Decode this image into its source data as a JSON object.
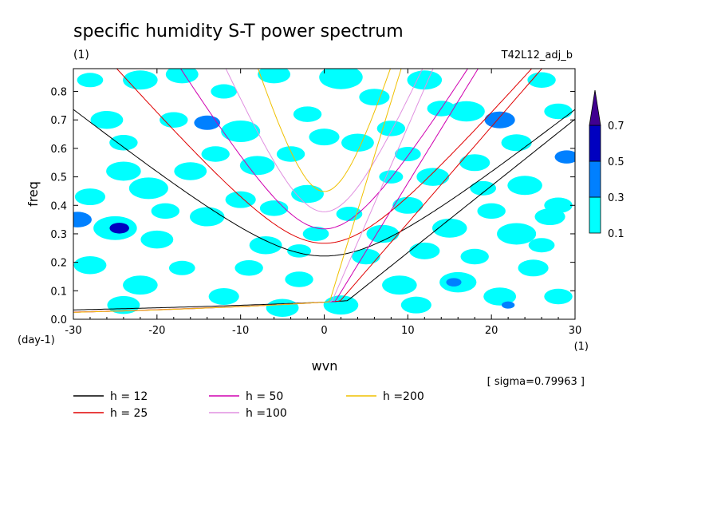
{
  "chart_data": {
    "type": "heatmap",
    "title": "specific humidity S-T power spectrum",
    "subtitle": "(1)",
    "run_label": "T42L12_adj_b",
    "xlabel": "wvn",
    "ylabel": "freq",
    "x_unit": "(1)",
    "y_unit": "(day-1)",
    "sigma_label": "[ sigma=0.79963 ]",
    "xlim": [
      -30,
      30
    ],
    "ylim": [
      0,
      0.88
    ],
    "x_ticks": [
      -30,
      -20,
      -10,
      0,
      10,
      20,
      30
    ],
    "x_tick_labels": [
      "-30",
      "-20",
      "-10",
      "0",
      "10",
      "20",
      "30"
    ],
    "y_ticks": [
      0.0,
      0.1,
      0.2,
      0.3,
      0.4,
      0.5,
      0.6,
      0.7,
      0.8
    ],
    "y_tick_labels": [
      "0.0",
      "0.1",
      "0.2",
      "0.3",
      "0.4",
      "0.5",
      "0.6",
      "0.7",
      "0.8"
    ],
    "colorbar": {
      "levels": [
        0.1,
        0.3,
        0.5,
        0.7
      ],
      "labels": [
        "0.1",
        "0.3",
        "0.5",
        "0.7"
      ],
      "colors": [
        "#00ffff",
        "#0080ff",
        "#0000c0",
        "#400090"
      ]
    },
    "dispersion_curves": [
      {
        "name": "h = 12",
        "h": 12,
        "color": "#000000"
      },
      {
        "name": "h = 25",
        "h": 25,
        "color": "#e00000"
      },
      {
        "name": "h = 50",
        "h": 50,
        "color": "#d000b0"
      },
      {
        "name": "h =100",
        "h": 100,
        "color": "#e090e0"
      },
      {
        "name": "h =200",
        "h": 200,
        "color": "#f0c000"
      }
    ],
    "power_blobs": [
      {
        "x": -28,
        "y": 0.84,
        "r": 1.2,
        "level": 1
      },
      {
        "x": -26,
        "y": 0.7,
        "r": 1.5,
        "level": 1
      },
      {
        "x": -24,
        "y": 0.62,
        "r": 1.3,
        "level": 1
      },
      {
        "x": -22,
        "y": 0.84,
        "r": 1.6,
        "level": 1
      },
      {
        "x": -17,
        "y": 0.86,
        "r": 1.5,
        "level": 1
      },
      {
        "x": -14,
        "y": 0.69,
        "r": 1.2,
        "level": 2
      },
      {
        "x": -10,
        "y": 0.66,
        "r": 1.8,
        "level": 1
      },
      {
        "x": -6,
        "y": 0.86,
        "r": 1.5,
        "level": 1
      },
      {
        "x": -2,
        "y": 0.72,
        "r": 1.3,
        "level": 1
      },
      {
        "x": 2,
        "y": 0.85,
        "r": 2.0,
        "level": 1
      },
      {
        "x": 6,
        "y": 0.78,
        "r": 1.4,
        "level": 1
      },
      {
        "x": 12,
        "y": 0.84,
        "r": 1.6,
        "level": 1
      },
      {
        "x": 17,
        "y": 0.73,
        "r": 1.7,
        "level": 1
      },
      {
        "x": 21,
        "y": 0.7,
        "r": 1.4,
        "level": 2
      },
      {
        "x": 26,
        "y": 0.84,
        "r": 1.3,
        "level": 1
      },
      {
        "x": 29,
        "y": 0.57,
        "r": 1.1,
        "level": 2
      },
      {
        "x": -28,
        "y": 0.43,
        "r": 1.4,
        "level": 1
      },
      {
        "x": -24,
        "y": 0.52,
        "r": 1.6,
        "level": 1
      },
      {
        "x": -21,
        "y": 0.46,
        "r": 1.8,
        "level": 1
      },
      {
        "x": -16,
        "y": 0.52,
        "r": 1.5,
        "level": 1
      },
      {
        "x": -13,
        "y": 0.58,
        "r": 1.3,
        "level": 1
      },
      {
        "x": -8,
        "y": 0.54,
        "r": 1.6,
        "level": 1
      },
      {
        "x": -4,
        "y": 0.58,
        "r": 1.3,
        "level": 1
      },
      {
        "x": 4,
        "y": 0.62,
        "r": 1.5,
        "level": 1
      },
      {
        "x": 8,
        "y": 0.67,
        "r": 1.3,
        "level": 1
      },
      {
        "x": 13,
        "y": 0.5,
        "r": 1.5,
        "level": 1
      },
      {
        "x": 18,
        "y": 0.55,
        "r": 1.4,
        "level": 1
      },
      {
        "x": 24,
        "y": 0.47,
        "r": 1.6,
        "level": 1
      },
      {
        "x": 28,
        "y": 0.4,
        "r": 1.3,
        "level": 1
      },
      {
        "x": -29.5,
        "y": 0.35,
        "r": 1.3,
        "level": 2
      },
      {
        "x": -25,
        "y": 0.32,
        "r": 2.0,
        "level": 1
      },
      {
        "x": -24.5,
        "y": 0.32,
        "r": 0.9,
        "level": 3
      },
      {
        "x": -20,
        "y": 0.28,
        "r": 1.5,
        "level": 1
      },
      {
        "x": -14,
        "y": 0.36,
        "r": 1.6,
        "level": 1
      },
      {
        "x": -10,
        "y": 0.42,
        "r": 1.4,
        "level": 1
      },
      {
        "x": -6,
        "y": 0.39,
        "r": 1.3,
        "level": 1
      },
      {
        "x": -2,
        "y": 0.44,
        "r": 1.5,
        "level": 1
      },
      {
        "x": 10,
        "y": 0.4,
        "r": 1.4,
        "level": 1
      },
      {
        "x": 15,
        "y": 0.32,
        "r": 1.6,
        "level": 1
      },
      {
        "x": 20,
        "y": 0.38,
        "r": 1.3,
        "level": 1
      },
      {
        "x": 23,
        "y": 0.3,
        "r": 1.8,
        "level": 1
      },
      {
        "x": 27,
        "y": 0.36,
        "r": 1.4,
        "level": 1
      },
      {
        "x": -28,
        "y": 0.19,
        "r": 1.5,
        "level": 1
      },
      {
        "x": -22,
        "y": 0.12,
        "r": 1.6,
        "level": 1
      },
      {
        "x": -17,
        "y": 0.18,
        "r": 1.2,
        "level": 1
      },
      {
        "x": -12,
        "y": 0.08,
        "r": 1.4,
        "level": 1
      },
      {
        "x": -7,
        "y": 0.26,
        "r": 1.5,
        "level": 1
      },
      {
        "x": -3,
        "y": 0.14,
        "r": 1.3,
        "level": 1
      },
      {
        "x": 2,
        "y": 0.05,
        "r": 1.6,
        "level": 1
      },
      {
        "x": 5,
        "y": 0.22,
        "r": 1.3,
        "level": 1
      },
      {
        "x": 9,
        "y": 0.12,
        "r": 1.6,
        "level": 1
      },
      {
        "x": 12,
        "y": 0.24,
        "r": 1.4,
        "level": 1
      },
      {
        "x": 16,
        "y": 0.13,
        "r": 1.7,
        "level": 1
      },
      {
        "x": 15.5,
        "y": 0.13,
        "r": 0.7,
        "level": 2
      },
      {
        "x": 21,
        "y": 0.08,
        "r": 1.5,
        "level": 1
      },
      {
        "x": 22,
        "y": 0.05,
        "r": 0.6,
        "level": 2
      },
      {
        "x": 25,
        "y": 0.18,
        "r": 1.4,
        "level": 1
      },
      {
        "x": 28,
        "y": 0.08,
        "r": 1.3,
        "level": 1
      },
      {
        "x": -24,
        "y": 0.05,
        "r": 1.5,
        "level": 1
      },
      {
        "x": -9,
        "y": 0.18,
        "r": 1.3,
        "level": 1
      },
      {
        "x": -1,
        "y": 0.3,
        "r": 1.2,
        "level": 1
      },
      {
        "x": 7,
        "y": 0.3,
        "r": 1.5,
        "level": 1
      },
      {
        "x": 18,
        "y": 0.22,
        "r": 1.3,
        "level": 1
      },
      {
        "x": -5,
        "y": 0.04,
        "r": 1.5,
        "level": 1
      },
      {
        "x": 11,
        "y": 0.05,
        "r": 1.4,
        "level": 1
      },
      {
        "x": 26,
        "y": 0.26,
        "r": 1.2,
        "level": 1
      },
      {
        "x": -18,
        "y": 0.7,
        "r": 1.3,
        "level": 1
      },
      {
        "x": 0,
        "y": 0.64,
        "r": 1.4,
        "level": 1
      },
      {
        "x": 10,
        "y": 0.58,
        "r": 1.2,
        "level": 1
      },
      {
        "x": 14,
        "y": 0.74,
        "r": 1.3,
        "level": 1
      },
      {
        "x": 23,
        "y": 0.62,
        "r": 1.4,
        "level": 1
      },
      {
        "x": -3,
        "y": 0.24,
        "r": 1.1,
        "level": 1
      },
      {
        "x": 19,
        "y": 0.46,
        "r": 1.2,
        "level": 1
      },
      {
        "x": -19,
        "y": 0.38,
        "r": 1.3,
        "level": 1
      },
      {
        "x": 3,
        "y": 0.37,
        "r": 1.2,
        "level": 1
      },
      {
        "x": 8,
        "y": 0.5,
        "r": 1.1,
        "level": 1
      },
      {
        "x": -12,
        "y": 0.8,
        "r": 1.2,
        "level": 1
      },
      {
        "x": 28,
        "y": 0.73,
        "r": 1.3,
        "level": 1
      }
    ]
  }
}
